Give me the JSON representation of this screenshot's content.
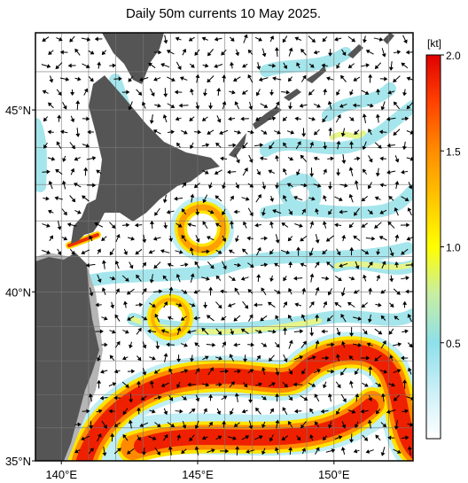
{
  "map": {
    "title": "Daily 50m currents 10 May 2025.",
    "lonlim": [
      139.05,
      152.9
    ],
    "latlim": [
      35,
      47
    ],
    "grid": true,
    "lat_labels": [
      {
        "value": 45,
        "label": "45°N"
      },
      {
        "value": 40,
        "label": "40°N"
      },
      {
        "value": 35,
        "label": "35°N"
      }
    ],
    "lon_labels": [
      {
        "value": 140,
        "label": "140°E"
      },
      {
        "value": 145,
        "label": "145°E"
      },
      {
        "value": 150,
        "label": "150°E"
      }
    ],
    "colorbar": {
      "unit": "[kt]",
      "range": [
        0,
        2
      ],
      "ticks": [
        {
          "value": 2,
          "label": "2.0"
        },
        {
          "value": 1.5,
          "label": "1.5"
        },
        {
          "value": 1,
          "label": "1.0"
        },
        {
          "value": 0.5,
          "label": "0.5"
        }
      ]
    }
  }
}
